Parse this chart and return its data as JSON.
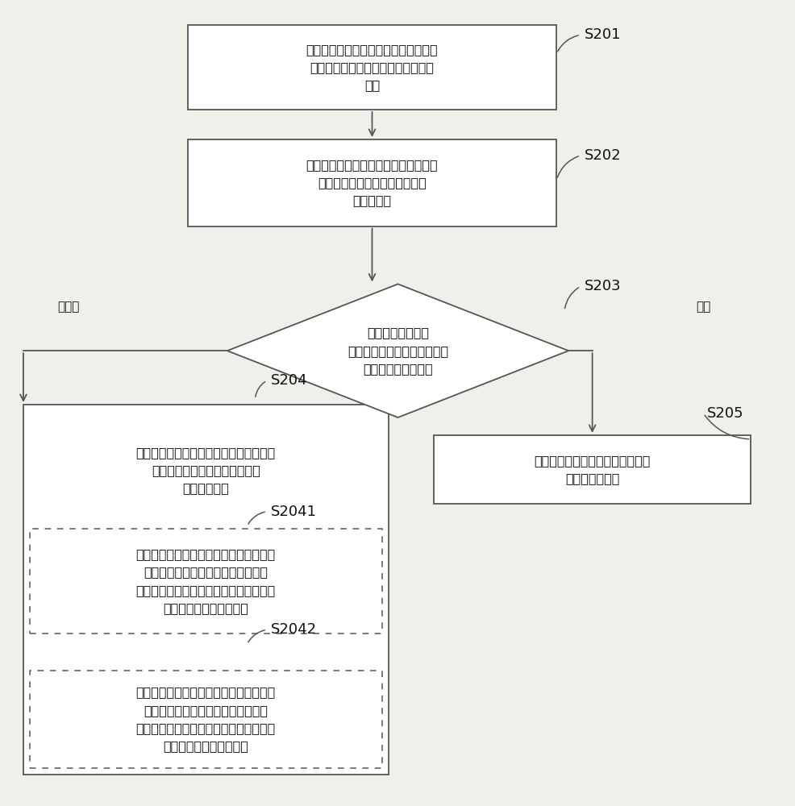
{
  "bg_color": "#f0f0eb",
  "box_color": "#ffffff",
  "box_edge_color": "#555555",
  "text_color": "#111111",
  "arrow_color": "#555555",
  "font_size": 11.5,
  "label_font_size": 13,
  "s201_text": "当检测到应用程序升级时，下载与所述\n应用程序版本相匹配的音频播放设备\n固件",
  "s202_text": "当升级后的应用程序首次连接音频播放\n设备时，获取所述音频播放设备\n的版本信息",
  "s203_text": "将所述应用程序的\n版本信息与所述音频播放设备\n的版本信息进行匹配",
  "s204_text": "将所述音频播放设备固件发送至所述音频\n播放设备以对所述音频播放设备\n进行固件更新",
  "s205_text": "通过所述应用程序控制所述音频播\n放设备进行工作",
  "s2041_text": "当所述应用程序的版本高于所述音频播放\n设备的版本时，将所述音频播放设备\n固件发送至所述音频播放设备以对所述音\n频播放设备进行固件升级",
  "s2042_text": "当所述应用程序的版本低于所述音频播放\n设备的版本时，将所述音频播放设备\n固件发送至所述音频播放设备以对所述音\n频播放设备进行固件降级",
  "label_s201": "S201",
  "label_s202": "S202",
  "label_s203": "S203",
  "label_s204": "S204",
  "label_s205": "S205",
  "label_s2041": "S2041",
  "label_s2042": "S2042",
  "label_no_match": "不匹配",
  "label_match": "匹配"
}
